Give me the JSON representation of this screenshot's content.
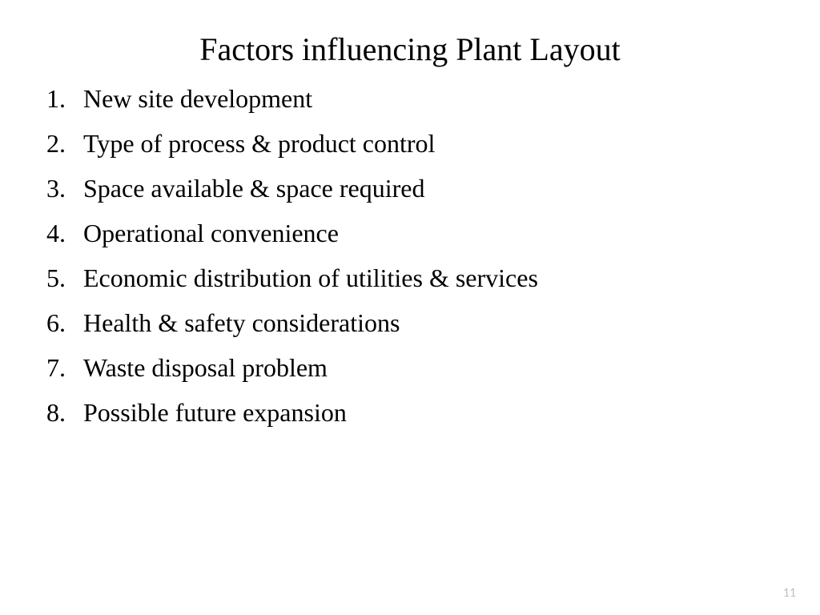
{
  "slide": {
    "title": "Factors influencing Plant Layout",
    "items": [
      "New site development",
      "Type of process & product control",
      "Space available & space required",
      "Operational convenience",
      "Economic distribution of utilities & services",
      "Health & safety considerations",
      "Waste disposal problem",
      "Possible future expansion"
    ],
    "page_number": "11"
  },
  "style": {
    "background_color": "#ffffff",
    "text_color": "#000000",
    "page_number_color": "#bfbfbf",
    "title_fontsize": 40,
    "item_fontsize": 32,
    "page_number_fontsize": 16,
    "font_family": "Garamond, Times New Roman, serif"
  }
}
